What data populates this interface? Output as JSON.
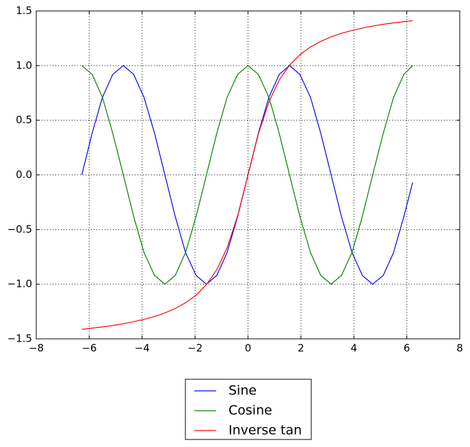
{
  "chart_data": {
    "type": "line",
    "x": [
      -6.28,
      -5.89,
      -5.5,
      -5.11,
      -4.71,
      -4.32,
      -3.93,
      -3.53,
      -3.14,
      -2.75,
      -2.36,
      -1.96,
      -1.57,
      -1.18,
      -0.79,
      -0.39,
      0,
      0.39,
      0.79,
      1.18,
      1.57,
      1.96,
      2.36,
      2.75,
      3.14,
      3.53,
      3.93,
      4.32,
      4.71,
      5.11,
      5.5,
      5.89,
      6.22
    ],
    "series": [
      {
        "name": "Sine",
        "color": "#0000ff",
        "values": [
          0,
          0.38,
          0.71,
          0.92,
          1,
          0.92,
          0.71,
          0.38,
          0,
          -0.38,
          -0.71,
          -0.92,
          -1,
          -0.92,
          -0.71,
          -0.38,
          0,
          0.38,
          0.71,
          0.92,
          1,
          0.92,
          0.71,
          0.38,
          0,
          -0.38,
          -0.71,
          -0.92,
          -1,
          -0.92,
          -0.71,
          -0.38,
          -0.07
        ]
      },
      {
        "name": "Cosine",
        "color": "#008000",
        "values": [
          1,
          0.92,
          0.71,
          0.38,
          0,
          -0.38,
          -0.71,
          -0.92,
          -1,
          -0.92,
          -0.71,
          -0.38,
          0,
          0.38,
          0.71,
          0.92,
          1,
          0.92,
          0.71,
          0.38,
          0,
          -0.38,
          -0.71,
          -0.92,
          -1,
          -0.92,
          -0.71,
          -0.38,
          0,
          0.38,
          0.71,
          0.92,
          1
        ]
      },
      {
        "name": "Inverse tan",
        "color": "#ff0000",
        "values": [
          -1.413,
          -1.402,
          -1.391,
          -1.378,
          -1.362,
          -1.343,
          -1.322,
          -1.295,
          -1.263,
          -1.222,
          -1.17,
          -1.1,
          -1.004,
          -0.868,
          -0.668,
          -0.374,
          0,
          0.374,
          0.668,
          0.868,
          1.004,
          1.1,
          1.17,
          1.222,
          1.263,
          1.295,
          1.322,
          1.343,
          1.362,
          1.378,
          1.391,
          1.402,
          1.411
        ]
      }
    ],
    "xlim": [
      -8,
      8
    ],
    "xticks": [
      {
        "value": -8,
        "label": "−8"
      },
      {
        "value": -6,
        "label": "−6"
      },
      {
        "value": -4,
        "label": "−4"
      },
      {
        "value": -2,
        "label": "−2"
      },
      0,
      2,
      4,
      6,
      8
    ],
    "ylim": [
      -1.5,
      1.5
    ],
    "yticks": [
      {
        "value": -1.5,
        "label": "−1.5"
      },
      {
        "value": -1.0,
        "label": "−1.0"
      },
      {
        "value": -0.5,
        "label": "−0.5"
      },
      {
        "value": 0,
        "label": "0.0"
      },
      0.5,
      {
        "value": 1.0,
        "label": "1.0"
      },
      1.5
    ],
    "grid": true
  }
}
